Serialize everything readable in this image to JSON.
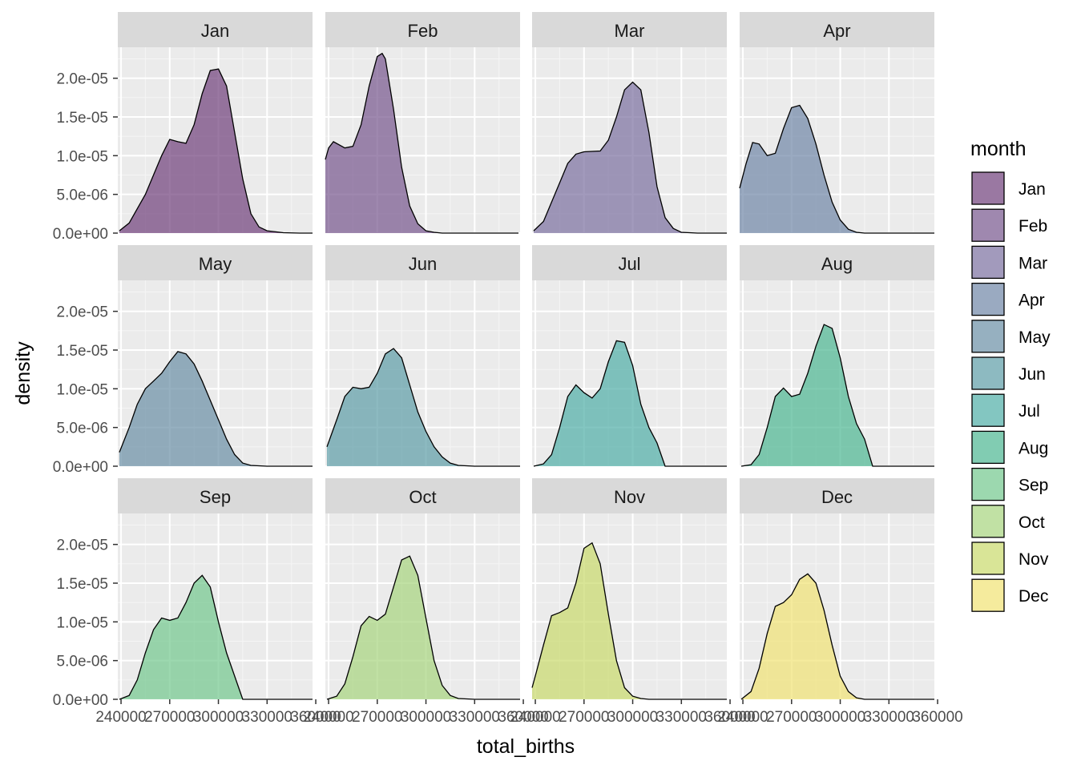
{
  "chart_data": {
    "type": "area",
    "facet_by": "month",
    "facet_rows": 3,
    "facet_cols": 4,
    "xlabel": "total_births",
    "ylabel": "density",
    "xlim": [
      238000,
      358000
    ],
    "ylim": [
      0,
      2.4e-05
    ],
    "x_tick_values": [
      240000,
      270000,
      300000,
      330000,
      360000
    ],
    "x_tick_labels": [
      "240000",
      "270000",
      "300000",
      "330000",
      "360000"
    ],
    "y_tick_values": [
      0,
      5e-06,
      1e-05,
      1.5e-05,
      2e-05
    ],
    "y_tick_labels": [
      "0.0e+00",
      "5.0e-06",
      "1.0e-05",
      "1.5e-05",
      "2.0e-05"
    ],
    "grid": true,
    "legend": {
      "title": "month",
      "position": "right",
      "entries": [
        "Jan",
        "Feb",
        "Mar",
        "Apr",
        "May",
        "Jun",
        "Jul",
        "Aug",
        "Sep",
        "Oct",
        "Nov",
        "Dec"
      ]
    },
    "series": [
      {
        "name": "Jan",
        "color": "#6f3f7b",
        "x": [
          239000,
          245000,
          255000,
          265000,
          270000,
          275000,
          280000,
          285000,
          290000,
          295000,
          300000,
          305000,
          310000,
          315000,
          320000,
          325000,
          330000,
          340000,
          350000,
          358000
        ],
        "y": [
          3e-07,
          1.3e-06,
          5e-06,
          1e-05,
          1.21e-05,
          1.18e-05,
          1.16e-05,
          1.4e-05,
          1.8e-05,
          2.1e-05,
          2.12e-05,
          1.9e-05,
          1.3e-05,
          7e-06,
          2.5e-06,
          8e-07,
          3e-07,
          5e-08,
          0,
          0
        ]
      },
      {
        "name": "Feb",
        "color": "#76568d",
        "x": [
          238000,
          240000,
          243000,
          250000,
          255000,
          260000,
          265000,
          270000,
          273000,
          275000,
          280000,
          285000,
          290000,
          295000,
          300000,
          305000,
          310000,
          320000,
          330000,
          340000,
          350000,
          357000
        ],
        "y": [
          9.5e-06,
          1.1e-05,
          1.18e-05,
          1.1e-05,
          1.12e-05,
          1.4e-05,
          1.9e-05,
          2.28e-05,
          2.32e-05,
          2.25e-05,
          1.6e-05,
          8.5e-06,
          3.5e-06,
          1.2e-06,
          3e-07,
          1e-07,
          0,
          0,
          0,
          0,
          0,
          0
        ]
      },
      {
        "name": "Mar",
        "color": "#7a6f9f",
        "x": [
          239000,
          245000,
          255000,
          260000,
          265000,
          270000,
          280000,
          285000,
          290000,
          295000,
          300000,
          305000,
          310000,
          315000,
          320000,
          325000,
          330000,
          340000,
          350000,
          358000
        ],
        "y": [
          3e-07,
          1.5e-06,
          6.5e-06,
          9e-06,
          1.02e-05,
          1.05e-05,
          1.06e-05,
          1.2e-05,
          1.5e-05,
          1.85e-05,
          1.95e-05,
          1.85e-05,
          1.3e-05,
          6e-06,
          2e-06,
          6e-07,
          1e-07,
          0,
          0,
          0
        ]
      },
      {
        "name": "Apr",
        "color": "#6f86a6",
        "x": [
          238000,
          242000,
          246000,
          250000,
          255000,
          260000,
          265000,
          270000,
          275000,
          280000,
          285000,
          290000,
          295000,
          300000,
          305000,
          310000,
          315000,
          320000,
          330000,
          340000,
          350000,
          358000
        ],
        "y": [
          5.8e-06,
          9e-06,
          1.17e-05,
          1.15e-05,
          1e-05,
          1.03e-05,
          1.35e-05,
          1.62e-05,
          1.65e-05,
          1.48e-05,
          1.15e-05,
          7.5e-06,
          4e-06,
          1.7e-06,
          5e-07,
          1e-07,
          0,
          0,
          0,
          0,
          0,
          0
        ]
      },
      {
        "name": "May",
        "color": "#6a8ea5",
        "x": [
          239000,
          245000,
          250000,
          255000,
          260000,
          265000,
          270000,
          275000,
          280000,
          285000,
          290000,
          295000,
          300000,
          305000,
          310000,
          315000,
          320000,
          330000,
          340000,
          350000,
          358000
        ],
        "y": [
          1.8e-06,
          5e-06,
          8e-06,
          1e-05,
          1.1e-05,
          1.2e-05,
          1.35e-05,
          1.48e-05,
          1.45e-05,
          1.32e-05,
          1.1e-05,
          8.5e-06,
          6e-06,
          3.5e-06,
          1.5e-06,
          4e-07,
          1e-07,
          0,
          0,
          0,
          0
        ]
      },
      {
        "name": "Jun",
        "color": "#5c9da6",
        "x": [
          239000,
          245000,
          250000,
          255000,
          260000,
          265000,
          270000,
          275000,
          280000,
          285000,
          290000,
          295000,
          300000,
          305000,
          310000,
          315000,
          320000,
          330000,
          340000,
          350000,
          358000
        ],
        "y": [
          2.5e-06,
          6e-06,
          9e-06,
          1.02e-05,
          1e-05,
          1.02e-05,
          1.2e-05,
          1.45e-05,
          1.52e-05,
          1.4e-05,
          1.05e-05,
          7e-06,
          4.5e-06,
          2.5e-06,
          1.2e-06,
          4e-07,
          1e-07,
          0,
          0,
          0,
          0
        ]
      },
      {
        "name": "Jul",
        "color": "#4eaea6",
        "x": [
          239000,
          245000,
          250000,
          255000,
          260000,
          265000,
          270000,
          275000,
          280000,
          285000,
          290000,
          295000,
          300000,
          305000,
          310000,
          315000,
          320000,
          325000,
          330000,
          340000,
          350000,
          358000
        ],
        "y": [
          0,
          3e-07,
          1.5e-06,
          5e-06,
          9e-06,
          1.05e-05,
          9.5e-06,
          8.8e-06,
          1e-05,
          1.35e-05,
          1.62e-05,
          1.6e-05,
          1.3e-05,
          8e-06,
          5e-06,
          3e-06,
          0,
          0,
          0,
          0,
          0,
          0
        ]
      },
      {
        "name": "Aug",
        "color": "#4cb792",
        "x": [
          239000,
          245000,
          250000,
          255000,
          260000,
          265000,
          270000,
          275000,
          280000,
          285000,
          290000,
          295000,
          300000,
          305000,
          310000,
          315000,
          320000,
          330000,
          340000,
          350000,
          358000
        ],
        "y": [
          0,
          2e-07,
          1.5e-06,
          5e-06,
          9e-06,
          1.01e-05,
          9e-06,
          9.3e-06,
          1.2e-05,
          1.55e-05,
          1.83e-05,
          1.78e-05,
          1.4e-05,
          9e-06,
          5.5e-06,
          3.5e-06,
          0,
          0,
          0,
          0,
          0
        ]
      },
      {
        "name": "Sep",
        "color": "#72c78d",
        "x": [
          239000,
          245000,
          250000,
          255000,
          260000,
          265000,
          270000,
          275000,
          280000,
          285000,
          290000,
          295000,
          300000,
          305000,
          310000,
          315000,
          320000,
          330000,
          340000,
          350000,
          358000
        ],
        "y": [
          0,
          5e-07,
          2.5e-06,
          6e-06,
          9e-06,
          1.05e-05,
          1.02e-05,
          1.05e-05,
          1.25e-05,
          1.5e-05,
          1.6e-05,
          1.45e-05,
          1e-05,
          6e-06,
          3e-06,
          0,
          0,
          0,
          0,
          0,
          0
        ]
      },
      {
        "name": "Oct",
        "color": "#a6d47e",
        "x": [
          239000,
          245000,
          250000,
          255000,
          260000,
          265000,
          270000,
          275000,
          280000,
          285000,
          290000,
          295000,
          300000,
          305000,
          310000,
          315000,
          320000,
          330000,
          340000,
          350000,
          358000
        ],
        "y": [
          0,
          4e-07,
          2e-06,
          5.5e-06,
          9.5e-06,
          1.07e-05,
          1.02e-05,
          1.1e-05,
          1.45e-05,
          1.8e-05,
          1.85e-05,
          1.6e-05,
          1.05e-05,
          5e-06,
          1.8e-06,
          5e-07,
          1e-07,
          0,
          0,
          0,
          0
        ]
      },
      {
        "name": "Nov",
        "color": "#c9da6b",
        "x": [
          238000,
          240000,
          245000,
          250000,
          255000,
          260000,
          265000,
          270000,
          275000,
          280000,
          285000,
          290000,
          295000,
          300000,
          305000,
          310000,
          315000,
          320000,
          330000,
          340000,
          350000,
          358000
        ],
        "y": [
          1.5e-06,
          3e-06,
          7e-06,
          1.08e-05,
          1.12e-05,
          1.18e-05,
          1.5e-05,
          1.95e-05,
          2.02e-05,
          1.75e-05,
          1.1e-05,
          5e-06,
          1.5e-06,
          4e-07,
          1e-07,
          0,
          0,
          0,
          0,
          0,
          0,
          0
        ]
      },
      {
        "name": "Dec",
        "color": "#f1e374",
        "x": [
          239000,
          245000,
          250000,
          255000,
          260000,
          265000,
          270000,
          275000,
          280000,
          285000,
          290000,
          295000,
          300000,
          305000,
          310000,
          315000,
          320000,
          330000,
          340000,
          350000,
          358000
        ],
        "y": [
          0,
          1e-06,
          4e-06,
          8.5e-06,
          1.2e-05,
          1.25e-05,
          1.35e-05,
          1.55e-05,
          1.62e-05,
          1.5e-05,
          1.15e-05,
          7e-06,
          3e-06,
          1e-06,
          2e-07,
          0,
          0,
          0,
          0,
          0,
          0
        ]
      }
    ]
  }
}
